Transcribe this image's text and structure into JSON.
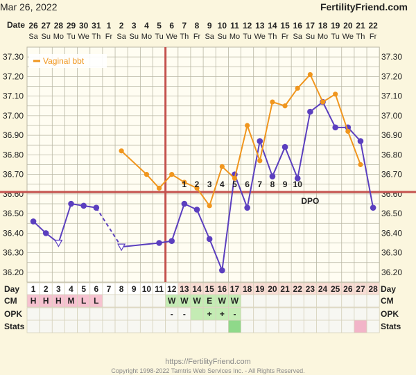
{
  "header": {
    "start_date": "Mar 26, 2022",
    "brand": "FertilityFriend.com"
  },
  "footer": {
    "url": "https://FertilityFriend.com",
    "copyright": "Copyright 1998-2022 Tamtris Web Services Inc. - All Rights Reserved."
  },
  "colors": {
    "background": "#fbf6de",
    "grid": "#b9b7a4",
    "primary_series": "#5b3fbf",
    "vaginal_series": "#f0961e",
    "coverline": "#c4524e",
    "ovulation_line": "#c4524e",
    "mucus_highlight": "#f6c2d0",
    "fertile_highlight": "#c4ecb4",
    "stats_green": "#8fd98a",
    "stats_pink": "#f2b4c8",
    "post_ov_day_bg": "#f9dcd4"
  },
  "chart_data": {
    "type": "line",
    "title": "",
    "legend": {
      "position": "top-left",
      "entries": [
        "Vaginal bbt"
      ]
    },
    "x_label": "Date",
    "dates": [
      "26",
      "27",
      "28",
      "29",
      "30",
      "31",
      "1",
      "2",
      "3",
      "4",
      "5",
      "6",
      "7",
      "8",
      "9",
      "10",
      "11",
      "12",
      "13",
      "14",
      "15",
      "16",
      "17",
      "18",
      "19",
      "20",
      "21",
      "22"
    ],
    "weekdays": [
      "Sa",
      "Su",
      "Mo",
      "Tu",
      "We",
      "Th",
      "Fr",
      "Sa",
      "Su",
      "Mo",
      "Tu",
      "We",
      "Th",
      "Fr",
      "Sa",
      "Su",
      "Mo",
      "Tu",
      "We",
      "Th",
      "Fr",
      "Sa",
      "Su",
      "Mo",
      "Tu",
      "We",
      "Th",
      "Fr"
    ],
    "y_ticks": [
      "37.30",
      "37.20",
      "37.10",
      "37.00",
      "36.90",
      "36.80",
      "36.70",
      "36.60",
      "36.50",
      "36.40",
      "36.30",
      "36.20"
    ],
    "ylim": [
      36.15,
      37.35
    ],
    "grid": true,
    "coverline": 36.61,
    "ovulation_day": 11,
    "series": [
      {
        "name": "",
        "style": "primary",
        "values": [
          36.46,
          36.4,
          36.35,
          36.55,
          36.54,
          36.53,
          null,
          36.33,
          null,
          null,
          36.35,
          36.36,
          36.55,
          36.52,
          36.37,
          36.21,
          36.7,
          36.53,
          36.87,
          36.69,
          36.84,
          36.68,
          37.02,
          37.07,
          36.94,
          36.94,
          36.87,
          36.53
        ],
        "open_markers": [
          2,
          7
        ],
        "dashed_segments": [
          [
            5,
            7
          ]
        ]
      },
      {
        "name": "Vaginal bbt",
        "style": "vaginal",
        "values": [
          null,
          null,
          null,
          null,
          null,
          null,
          null,
          36.82,
          null,
          36.7,
          36.63,
          36.7,
          36.66,
          36.63,
          36.54,
          36.74,
          36.68,
          36.95,
          36.77,
          37.07,
          37.05,
          37.14,
          37.21,
          37.07,
          37.11,
          36.92,
          36.75,
          null
        ]
      }
    ],
    "dpo_labels": [
      "1",
      "2",
      "3",
      "4",
      "5",
      "6",
      "7",
      "8",
      "9",
      "10"
    ],
    "dpo_title": "DPO",
    "table": {
      "row_labels": [
        "Day",
        "CM",
        "OPK",
        "Stats"
      ],
      "days": [
        "1",
        "2",
        "3",
        "4",
        "5",
        "6",
        "7",
        "8",
        "9",
        "10",
        "11",
        "12",
        "13",
        "14",
        "15",
        "16",
        "17",
        "18",
        "19",
        "20",
        "21",
        "22",
        "23",
        "24",
        "25",
        "26",
        "27",
        "28"
      ],
      "cm": [
        "H",
        "H",
        "H",
        "M",
        "L",
        "L",
        "",
        "",
        "",
        "",
        "",
        "W",
        "W",
        "W",
        "E",
        "W",
        "W",
        "",
        "",
        "",
        "",
        "",
        "",
        "",
        "",
        "",
        "",
        ""
      ],
      "opk": [
        "",
        "",
        "",
        "",
        "",
        "",
        "",
        "",
        "",
        "",
        "",
        "-",
        "-",
        "",
        "+",
        "+",
        "-",
        "",
        "",
        "",
        "",
        "",
        "",
        "",
        "",
        "",
        "",
        ""
      ],
      "stats": [
        "",
        "",
        "",
        "",
        "",
        "",
        "",
        "",
        "",
        "",
        "",
        "",
        "",
        "",
        "",
        "",
        "green",
        "",
        "",
        "",
        "",
        "",
        "",
        "",
        "",
        "",
        "pink",
        ""
      ]
    }
  }
}
